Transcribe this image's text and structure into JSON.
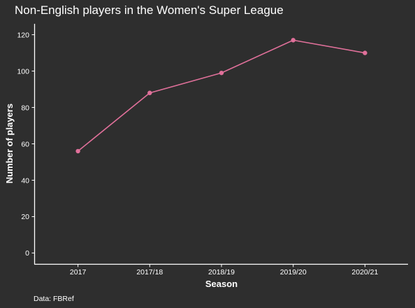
{
  "chart_data": {
    "type": "line",
    "title": "Non-English players in the Women's Super League",
    "xlabel": "Season",
    "ylabel": "Number of players",
    "categories": [
      "2017",
      "2017/18",
      "2018/19",
      "2019/20",
      "2020/21"
    ],
    "series": [
      {
        "values": [
          56,
          88,
          99,
          117,
          110
        ],
        "color": "#e0709a"
      }
    ],
    "yticks": [
      0,
      20,
      40,
      60,
      80,
      100,
      120
    ],
    "ylim": [
      -6,
      126
    ],
    "grid": false,
    "caption": "Data: FBRef"
  },
  "colors": {
    "background": "#2e2e2e",
    "text": "#ffffff",
    "line": "#e0709a"
  }
}
